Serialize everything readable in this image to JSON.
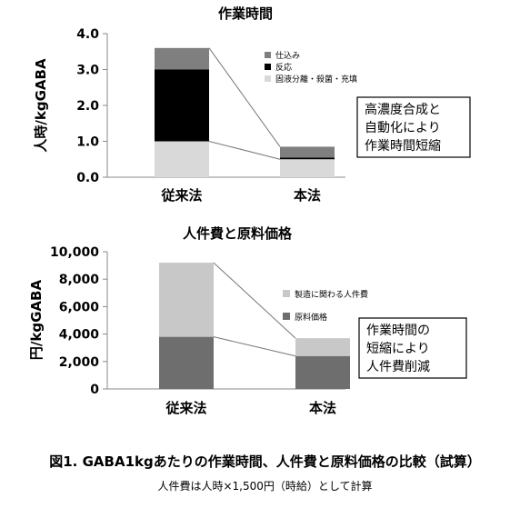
{
  "chart_data": [
    {
      "type": "bar",
      "stacked": true,
      "title": "作業時間",
      "ylabel": "人時/kgGABA",
      "ylim": [
        0,
        4.0
      ],
      "yticks": [
        "0.0",
        "1.0",
        "2.0",
        "3.0",
        "4.0"
      ],
      "ytick_values": [
        0,
        1,
        2,
        3,
        4
      ],
      "categories": [
        "従来法",
        "本法"
      ],
      "series": [
        {
          "name": "固液分離・殺菌・充填",
          "values": [
            1.0,
            0.5
          ],
          "color": "#d9d9d9"
        },
        {
          "name": "反応",
          "values": [
            2.0,
            0.05
          ],
          "color": "#000000"
        },
        {
          "name": "仕込み",
          "values": [
            0.6,
            0.3
          ],
          "color": "#7f7f7f"
        }
      ],
      "legend_position": "top-right",
      "legend_order": [
        2,
        1,
        0
      ],
      "annotation": [
        "高濃度合成と",
        "自動化により",
        "作業時間短縮"
      ]
    },
    {
      "type": "bar",
      "stacked": true,
      "title": "人件費と原料価格",
      "ylabel": "円/kgGABA",
      "ylim": [
        0,
        10000
      ],
      "yticks": [
        "0",
        "2,000",
        "4,000",
        "6,000",
        "8,000",
        "10,000"
      ],
      "ytick_values": [
        0,
        2000,
        4000,
        6000,
        8000,
        10000
      ],
      "categories": [
        "従来法",
        "本法"
      ],
      "series": [
        {
          "name": "原料価格",
          "values": [
            3800,
            2400
          ],
          "color": "#6e6e6e"
        },
        {
          "name": "製造に関わる人件費",
          "values": [
            5400,
            1300
          ],
          "color": "#c8c8c8"
        }
      ],
      "legend_position": "right",
      "legend_order": [
        1,
        0
      ],
      "annotation": [
        "作業時間の",
        "短縮により",
        "人件費削減"
      ]
    }
  ],
  "caption": {
    "main": "図1. GABA1kgあたりの作業時間、人件費と原料価格の比較（試算）",
    "sub": "人件費は人時×1,500円（時給）として計算"
  }
}
